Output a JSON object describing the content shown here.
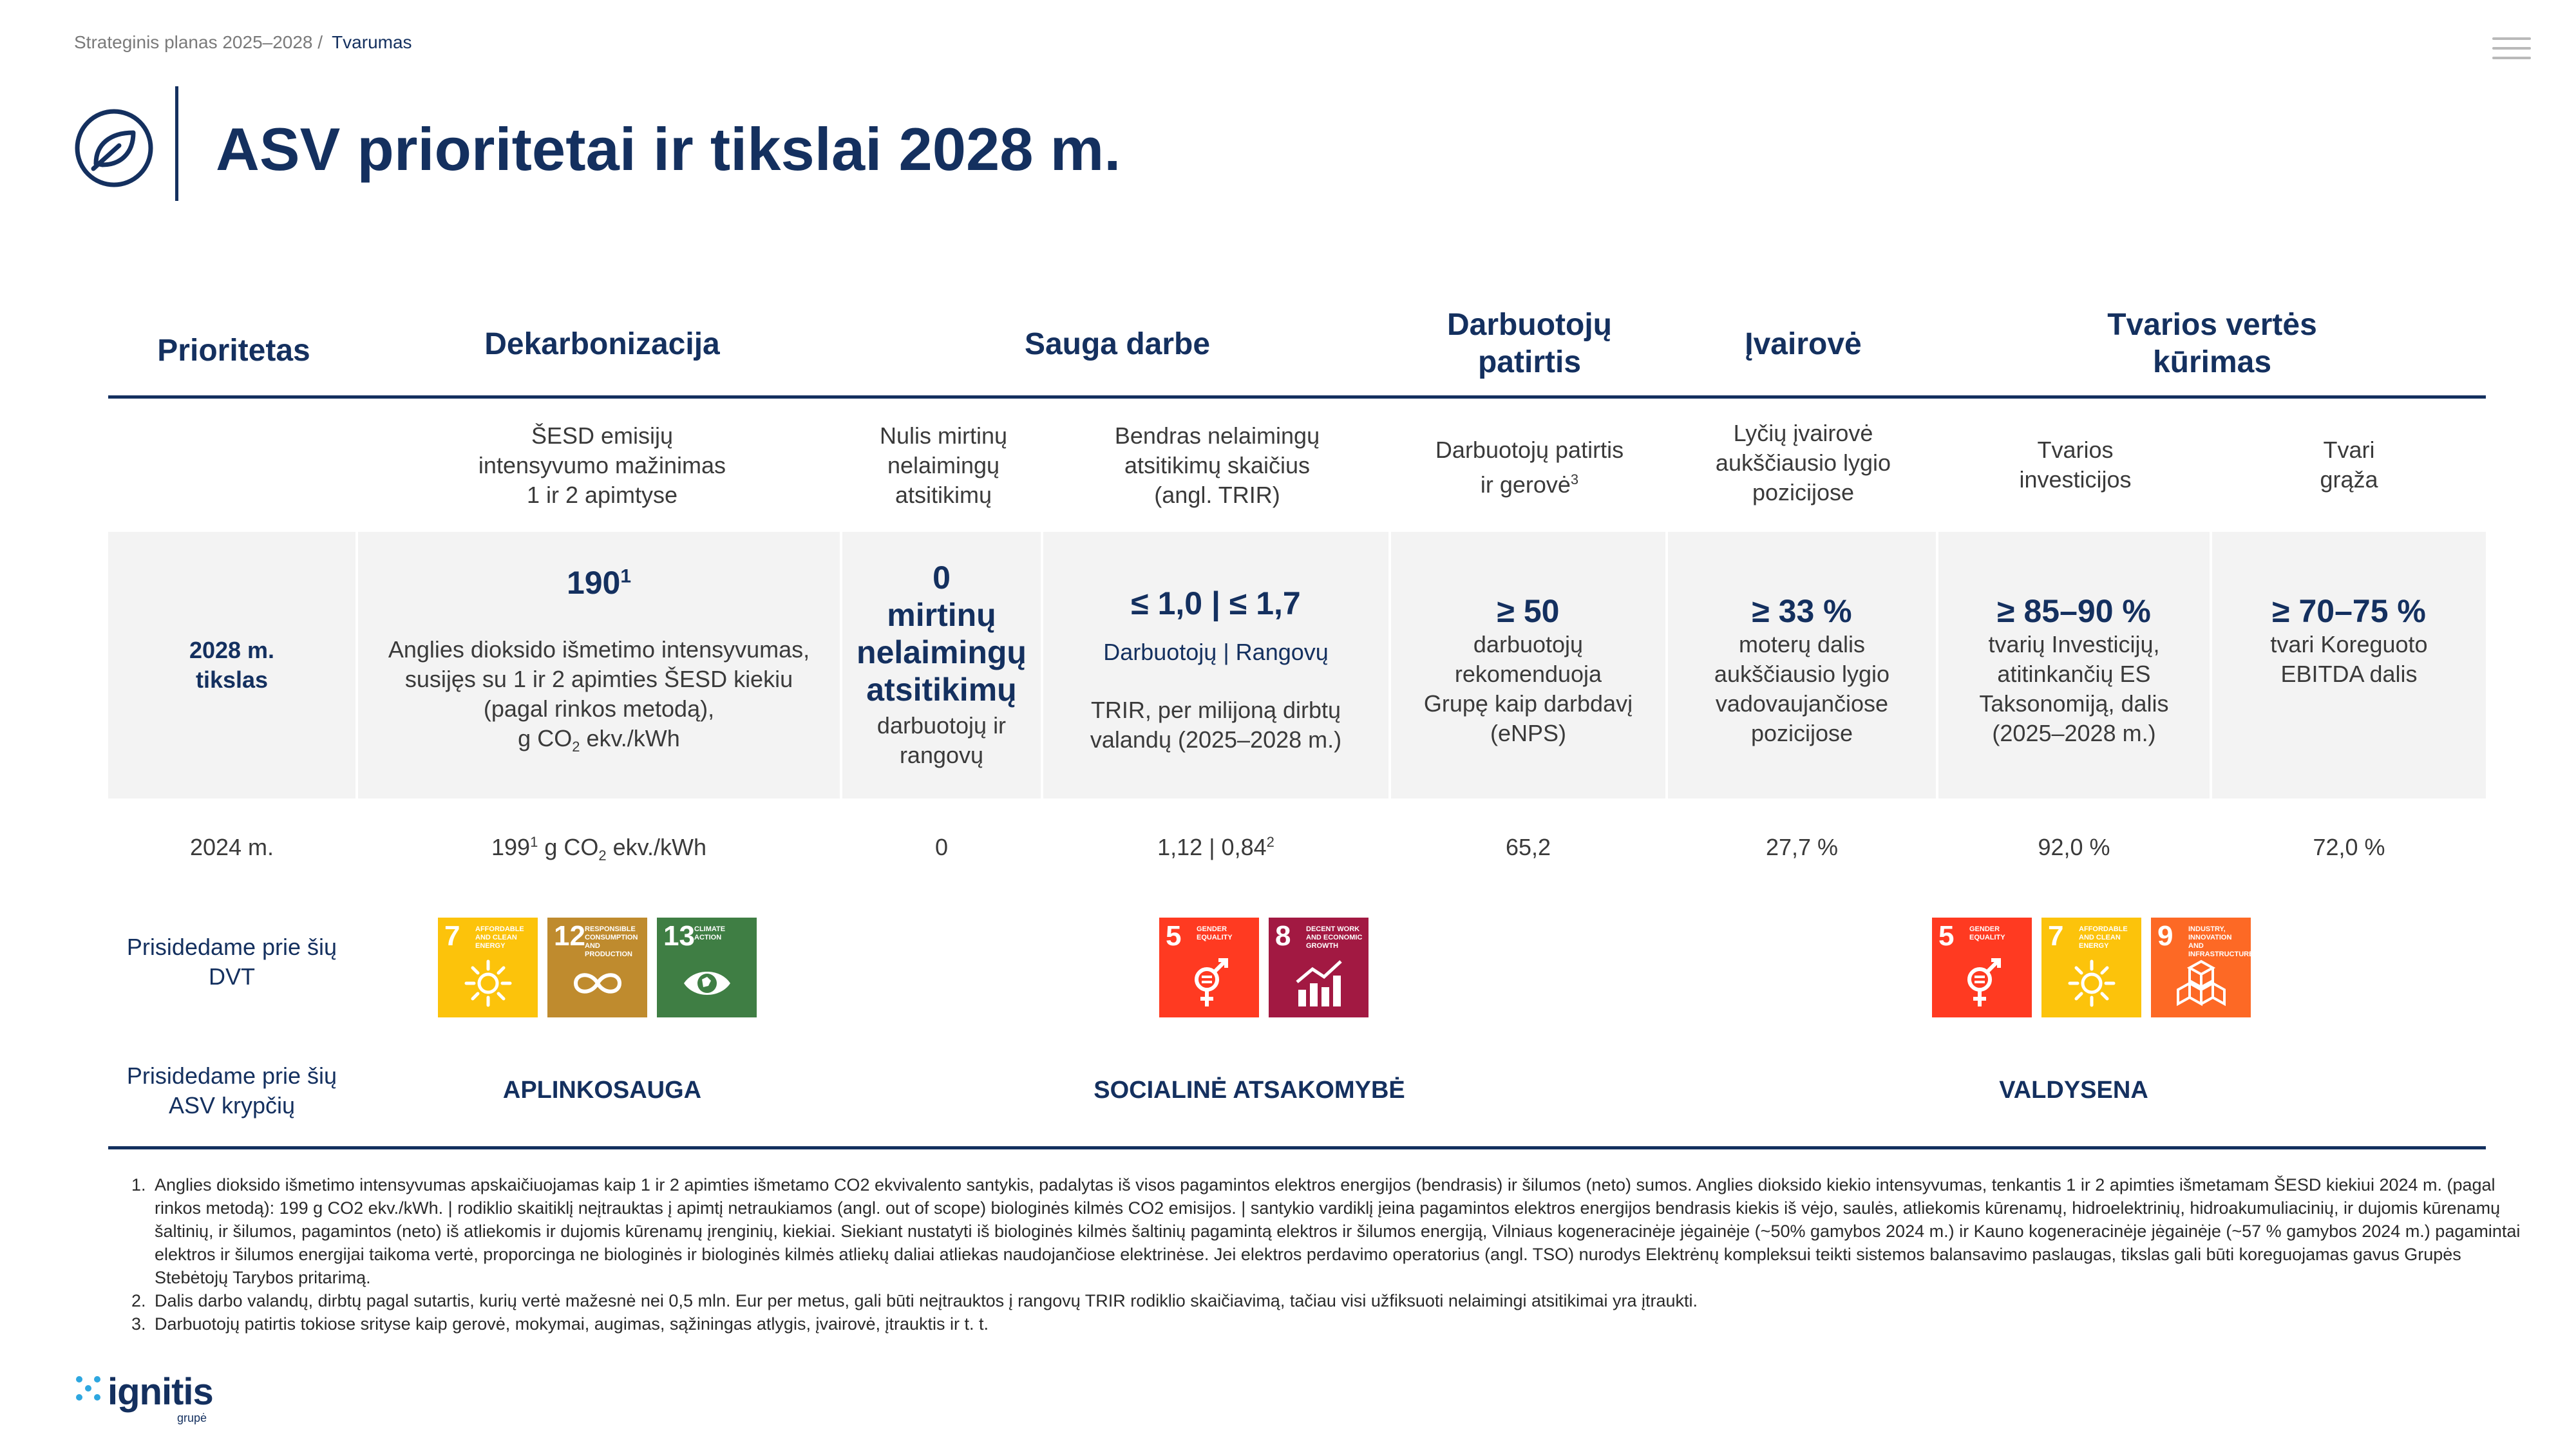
{
  "breadcrumb": {
    "parent": "Strateginis planas 2025–2028 /",
    "current": "Tvarumas"
  },
  "title": "ASV prioritetai ir tikslai 2028 m.",
  "columns": {
    "prioritetas": "Prioritetas",
    "dekarbonizacija": "Dekarbonizacija",
    "sauga": "Sauga darbe",
    "darbuotoju_1": "Darbuotojų",
    "darbuotoju_2": "patirtis",
    "ivairove": "Įvairovė",
    "tvarios_1": "Tvarios vertės",
    "tvarios_2": "kūrimas"
  },
  "subheaders": {
    "esesd": [
      "ŠESD emisijų",
      "intensyvumo mažinimas",
      "1 ir 2 apimtyse"
    ],
    "mirtinu": [
      "Nulis mirtinų",
      "nelaimingų",
      "atsitikimų"
    ],
    "trir": [
      "Bendras nelaimingų",
      "atsitikimų skaičius",
      "(angl. TRIR)"
    ],
    "patirtis": [
      "Darbuotojų patirtis",
      "ir gerovė"
    ],
    "patirtis_sup": "3",
    "lyciu": [
      "Lyčių įvairovė",
      "aukščiausio lygio",
      "pozicijose"
    ],
    "investicijos": [
      "Tvarios",
      "investicijos"
    ],
    "graza": [
      "Tvari",
      "grąža"
    ]
  },
  "row_target": {
    "label": [
      "2028 m.",
      "tikslas"
    ],
    "esesd_value": "190",
    "esesd_sup": "1",
    "esesd_desc": [
      "Anglies dioksido išmetimo intensyvumas,",
      "susijęs su 1 ir 2 apimties ŠESD kiekiu",
      "(pagal rinkos metodą),"
    ],
    "esesd_unit_pre": "g CO",
    "esesd_unit_sub": "2",
    "esesd_unit_post": " ekv./kWh",
    "mirtinu_value": [
      "0",
      "mirtinų",
      "nelaimingų",
      "atsitikimų"
    ],
    "mirtinu_desc": [
      "darbuotojų ir",
      "rangovų"
    ],
    "trir_value": "≤ 1,0 | ≤ 1,7",
    "trir_split": "Darbuotojų | Rangovų",
    "trir_desc": [
      "TRIR, per milijoną dirbtų",
      "valandų (2025–2028 m.)"
    ],
    "patirtis_value": "≥ 50",
    "patirtis_desc": [
      "darbuotojų",
      "rekomenduoja",
      "Grupę kaip darbdavį",
      "(eNPS)"
    ],
    "lyciu_value": "≥ 33 %",
    "lyciu_desc": [
      "moterų dalis",
      "aukščiausio lygio",
      "vadovaujančiose",
      "pozicijose"
    ],
    "investicijos_value": "≥ 85–90 %",
    "investicijos_desc": [
      "tvarių Investicijų,",
      "atitinkančių ES",
      "Taksonomiją, dalis",
      "(2025–2028 m.)"
    ],
    "graza_value": "≥ 70–75 %",
    "graza_desc": [
      "tvari Koreguoto",
      "EBITDA dalis"
    ]
  },
  "row_2024": {
    "label": "2024 m.",
    "esesd_pre": "199",
    "esesd_sup": "1",
    "esesd_mid": " g CO",
    "esesd_sub": "2",
    "esesd_post": " ekv./kWh",
    "mirtinu": "0",
    "trir": "1,12 | 0,84",
    "trir_sup": "2",
    "patirtis": "65,2",
    "lyciu": "27,7 %",
    "investicijos": "92,0 %",
    "graza": "72,0 %"
  },
  "row_sdg": {
    "label": [
      "Prisidedame prie šių",
      "DVT"
    ],
    "goals": [
      {
        "num": "7",
        "label": "Affordable and clean energy",
        "color": "#fcc30b",
        "icon": "sun-icon"
      },
      {
        "num": "12",
        "label": "Responsible consumption and production",
        "color": "#bf8b2e",
        "icon": "infinity-icon"
      },
      {
        "num": "13",
        "label": "Climate action",
        "color": "#3f7e44",
        "icon": "eye-globe-icon"
      },
      {
        "num": "5",
        "label": "Gender equality",
        "color": "#ff3a21",
        "icon": "gender-icon"
      },
      {
        "num": "8",
        "label": "Decent work and economic growth",
        "color": "#a21942",
        "icon": "growth-icon"
      },
      {
        "num": "5",
        "label": "Gender equality",
        "color": "#ff3a21",
        "icon": "gender-icon"
      },
      {
        "num": "7",
        "label": "Affordable and clean energy",
        "color": "#fcc30b",
        "icon": "sun-icon"
      },
      {
        "num": "9",
        "label": "Industry, innovation and infrastructure",
        "color": "#fd6925",
        "icon": "cubes-icon"
      }
    ]
  },
  "row_directions": {
    "label": [
      "Prisidedame prie šių",
      "ASV krypčių"
    ],
    "aplinkosauga": "APLINKOSAUGA",
    "socialine": "SOCIALINĖ ATSAKOMYBĖ",
    "valdysena": "VALDYSENA"
  },
  "footnotes": [
    "Anglies dioksido išmetimo intensyvumas apskaičiuojamas kaip 1 ir 2 apimties išmetamo CO2 ekvivalento santykis, padalytas iš visos pagamintos elektros energijos (bendrasis) ir šilumos (neto) sumos. Anglies dioksido kiekio intensyvumas, tenkantis 1 ir 2 apimties išmetamam ŠESD kiekiui 2024 m. (pagal rinkos metodą): 199 g CO2 ekv./kWh. | rodiklio skaitiklį neįtrauktas į apimtį netraukiamos (angl. out of scope) biologinės kilmės CO2 emisijos. | santykio vardiklį įeina pagamintos elektros energijos bendrasis kiekis iš vėjo, saulės, atliekomis kūrenamų, hidroelektrinių, hidroakumuliacinių,  ir dujomis kūrenamų šaltinių, ir šilumos, pagamintos (neto) iš atliekomis ir dujomis kūrenamų įrenginių, kiekiai. Siekiant nustatyti iš biologinės kilmės šaltinių pagamintą elektros ir šilumos energiją, Vilniaus kogeneracinėje jėgainėje (~50% gamybos 2024 m.) ir Kauno kogeneracinėje jėgainėje (~57 % gamybos 2024 m.) pagamintai elektros ir šilumos energijai taikoma vertė, proporcinga ne biologinės ir biologinės kilmės atliekų daliai atliekas naudojančiose elektrinėse. Jei elektros perdavimo operatorius (angl. TSO) nurodys Elektrėnų kompleksui teikti sistemos balansavimo paslaugas, tikslas gali būti koreguojamas gavus Grupės Stebėtojų Tarybos pritarimą.",
    "Dalis darbo valandų, dirbtų pagal sutartis, kurių vertė mažesnė nei 0,5 mln. Eur per metus, gali būti neįtrauktos į rangovų TRIR rodiklio skaičiavimą, tačiau visi užfiksuoti nelaimingi atsitikimai yra įtraukti.",
    "Darbuotojų patirtis tokiose srityse kaip gerovė, mokymai, augimas, sąžiningas atlygis, įvairovė, įtrauktis ir t. t."
  ],
  "logo": {
    "name": "ignitis",
    "sub": "grupė"
  }
}
